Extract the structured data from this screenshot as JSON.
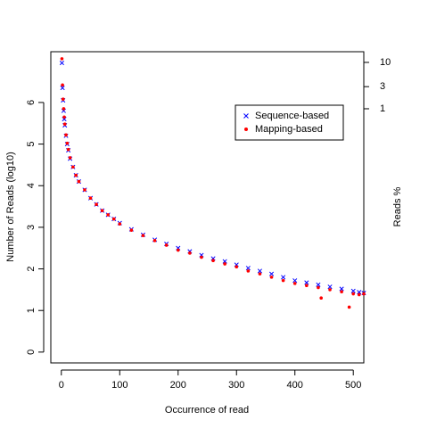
{
  "chart_data": {
    "type": "scatter",
    "xlabel": "Occurrence of read",
    "ylabel": "Number of Reads (log10)",
    "y2label": "Reads %",
    "xlim": [
      -18,
      518
    ],
    "xticks": [
      0,
      100,
      200,
      300,
      400,
      500
    ],
    "ylim": [
      -0.26,
      7.22
    ],
    "yticks": [
      0,
      1,
      2,
      3,
      4,
      5,
      6
    ],
    "y2log": true,
    "y2lim": [
      3.3e-06,
      17
    ],
    "y2ticks": [
      1,
      3,
      10
    ],
    "legend": "top-right",
    "series": [
      {
        "name": "Sequence-based",
        "color": "#0000ff",
        "marker": "x",
        "x": [
          1,
          2,
          3,
          4,
          5,
          6,
          8,
          10,
          12,
          15,
          20,
          25,
          30,
          40,
          50,
          60,
          70,
          80,
          90,
          100,
          120,
          140,
          160,
          180,
          200,
          220,
          240,
          260,
          280,
          300,
          320,
          340,
          360,
          380,
          400,
          420,
          440,
          460,
          480,
          500,
          510,
          518
        ],
        "values": [
          6.95,
          6.35,
          6.05,
          5.8,
          5.6,
          5.45,
          5.2,
          5.0,
          4.85,
          4.65,
          4.45,
          4.25,
          4.1,
          3.9,
          3.7,
          3.55,
          3.4,
          3.3,
          3.2,
          3.1,
          2.95,
          2.82,
          2.7,
          2.6,
          2.5,
          2.42,
          2.33,
          2.25,
          2.18,
          2.1,
          2.02,
          1.95,
          1.88,
          1.8,
          1.72,
          1.67,
          1.62,
          1.57,
          1.52,
          1.47,
          1.44,
          1.42
        ]
      },
      {
        "name": "Mapping-based",
        "color": "#ff0000",
        "marker": "o",
        "x": [
          1,
          2,
          3,
          4,
          5,
          6,
          8,
          10,
          12,
          15,
          20,
          25,
          30,
          40,
          50,
          60,
          70,
          80,
          90,
          100,
          120,
          140,
          160,
          180,
          200,
          220,
          240,
          260,
          280,
          300,
          320,
          340,
          360,
          380,
          400,
          420,
          440,
          460,
          480,
          500,
          510,
          518,
          445,
          493
        ],
        "values": [
          7.05,
          6.42,
          6.08,
          5.85,
          5.65,
          5.48,
          5.22,
          5.02,
          4.87,
          4.67,
          4.45,
          4.25,
          4.1,
          3.9,
          3.7,
          3.55,
          3.4,
          3.3,
          3.2,
          3.08,
          2.93,
          2.8,
          2.68,
          2.57,
          2.45,
          2.38,
          2.28,
          2.2,
          2.12,
          2.05,
          1.95,
          1.88,
          1.8,
          1.72,
          1.65,
          1.6,
          1.55,
          1.5,
          1.45,
          1.4,
          1.38,
          1.4,
          1.3,
          1.08
        ]
      }
    ]
  }
}
